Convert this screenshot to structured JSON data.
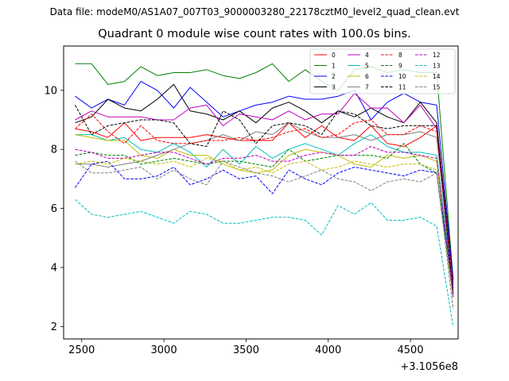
{
  "chart_data": {
    "type": "line",
    "suptitle": "Data file: modeM0/AS1A07_007T03_9000003280_22178cztM0_level2_quad_clean.evt",
    "title": "Quadrant 0 module wise count rates with 100.0s bins.",
    "xlabel": "",
    "ylabel": "",
    "x_offset_label": "+3.1056e8",
    "xlim": [
      2390,
      4790
    ],
    "ylim": [
      1.58,
      11.5
    ],
    "xticks": [
      2500,
      3000,
      3500,
      4000,
      4500
    ],
    "xtick_labels": [
      "2500",
      "3000",
      "3500",
      "4000",
      "4500"
    ],
    "yticks": [
      2,
      4,
      6,
      8,
      10
    ],
    "ytick_labels": [
      "2",
      "4",
      "6",
      "8",
      "10"
    ],
    "legend": {
      "placement": "top-right",
      "columns": 4
    },
    "x": [
      2460,
      2560,
      2660,
      2760,
      2860,
      2960,
      3060,
      3160,
      3260,
      3360,
      3460,
      3560,
      3660,
      3760,
      3860,
      3960,
      4060,
      4160,
      4260,
      4360,
      4460,
      4560,
      4660,
      4760
    ],
    "series": [
      {
        "name": "0",
        "color": "#ff0000",
        "dash": "solid",
        "values": [
          8.7,
          8.6,
          8.4,
          8.9,
          8.3,
          8.4,
          8.4,
          8.4,
          8.5,
          8.4,
          8.3,
          8.3,
          8.3,
          8.9,
          8.4,
          8.8,
          8.4,
          8.3,
          8.8,
          8.2,
          8.1,
          8.4,
          8.8,
          3.6
        ]
      },
      {
        "name": "1",
        "color": "#008000",
        "dash": "solid",
        "values": [
          10.9,
          10.9,
          10.2,
          10.3,
          10.8,
          10.5,
          10.6,
          10.6,
          10.7,
          10.5,
          10.4,
          10.6,
          10.9,
          10.3,
          10.7,
          10.3,
          10.0,
          10.7,
          10.8,
          10.6,
          10.7,
          10.6,
          10.6,
          3.6
        ]
      },
      {
        "name": "2",
        "color": "#0000ff",
        "dash": "solid",
        "values": [
          9.8,
          9.4,
          9.7,
          9.5,
          10.3,
          10.0,
          9.4,
          10.1,
          9.6,
          9.1,
          9.3,
          9.5,
          9.6,
          9.8,
          9.7,
          9.7,
          9.8,
          10.0,
          9.0,
          9.6,
          9.9,
          9.6,
          9.5,
          3.6
        ]
      },
      {
        "name": "3",
        "color": "#000000",
        "dash": "solid",
        "values": [
          8.9,
          9.1,
          9.7,
          9.4,
          9.3,
          9.7,
          10.2,
          9.3,
          9.2,
          9.0,
          9.3,
          8.9,
          9.4,
          9.6,
          9.3,
          8.9,
          9.3,
          9.1,
          9.4,
          9.1,
          8.9,
          9.6,
          8.9,
          3.5
        ]
      },
      {
        "name": "4",
        "color": "#bf00bf",
        "dash": "solid",
        "values": [
          9.0,
          9.3,
          9.1,
          9.1,
          9.1,
          9.0,
          9.0,
          9.4,
          9.5,
          8.8,
          9.2,
          9.1,
          9.0,
          9.3,
          9.0,
          9.2,
          9.2,
          9.9,
          9.4,
          9.4,
          8.9,
          9.5,
          8.7,
          3.4
        ]
      },
      {
        "name": "5",
        "color": "#00bfbf",
        "dash": "solid",
        "values": [
          8.5,
          8.5,
          8.3,
          8.4,
          8.0,
          7.9,
          8.2,
          7.9,
          7.4,
          8.0,
          7.5,
          8.1,
          7.7,
          8.0,
          8.2,
          8.0,
          7.8,
          8.2,
          8.5,
          8.1,
          7.9,
          7.9,
          7.8,
          3.2
        ]
      },
      {
        "name": "6",
        "color": "#bfbf00",
        "dash": "solid",
        "values": [
          8.5,
          8.4,
          8.3,
          8.3,
          7.8,
          7.7,
          8.0,
          7.8,
          7.8,
          7.5,
          7.3,
          7.2,
          7.3,
          7.8,
          8.0,
          7.9,
          7.8,
          7.5,
          7.4,
          7.8,
          7.7,
          7.8,
          7.6,
          3.0
        ]
      },
      {
        "name": "7",
        "color": "#808080",
        "dash": "solid",
        "values": [
          7.5,
          7.5,
          7.4,
          7.5,
          7.6,
          7.8,
          8.0,
          8.2,
          8.3,
          8.5,
          8.3,
          8.6,
          8.5,
          8.9,
          8.6,
          8.4,
          8.4,
          8.5,
          8.3,
          8.5,
          8.5,
          8.6,
          8.4,
          3.2
        ]
      },
      {
        "name": "8",
        "color": "#ff0000",
        "dash": "dashed",
        "values": [
          8.7,
          9.2,
          8.6,
          8.2,
          8.8,
          8.3,
          8.2,
          8.2,
          8.3,
          8.3,
          8.4,
          8.3,
          8.4,
          8.6,
          8.7,
          8.4,
          8.5,
          8.9,
          9.0,
          8.5,
          8.5,
          8.8,
          8.6,
          3.3
        ]
      },
      {
        "name": "9",
        "color": "#008000",
        "dash": "dashed",
        "values": [
          7.8,
          7.9,
          7.8,
          7.8,
          7.5,
          7.6,
          7.7,
          7.6,
          7.5,
          7.6,
          7.6,
          7.5,
          7.4,
          8.0,
          7.6,
          7.7,
          7.8,
          7.8,
          7.8,
          7.7,
          8.2,
          7.5,
          7.2,
          3.0
        ]
      },
      {
        "name": "10",
        "color": "#0000ff",
        "dash": "dashed",
        "values": [
          6.7,
          7.5,
          7.6,
          7.0,
          7.0,
          7.1,
          7.4,
          6.8,
          7.0,
          7.3,
          7.0,
          7.1,
          6.5,
          7.3,
          7.0,
          6.8,
          7.2,
          7.4,
          7.3,
          7.2,
          7.1,
          7.3,
          7.2,
          3.3
        ]
      },
      {
        "name": "11",
        "color": "#000000",
        "dash": "dashed",
        "values": [
          9.5,
          8.5,
          8.8,
          8.9,
          9.0,
          9.0,
          8.9,
          8.2,
          8.1,
          9.3,
          9.0,
          8.2,
          8.8,
          8.9,
          8.8,
          8.5,
          9.3,
          9.2,
          8.8,
          8.7,
          8.8,
          8.8,
          8.8,
          3.1
        ]
      },
      {
        "name": "12",
        "color": "#bf00bf",
        "dash": "dashed",
        "values": [
          8.0,
          7.9,
          7.7,
          7.7,
          7.8,
          7.9,
          7.9,
          7.7,
          7.5,
          7.7,
          7.7,
          7.8,
          7.6,
          7.6,
          7.8,
          7.9,
          7.8,
          7.8,
          8.1,
          7.9,
          7.9,
          7.8,
          7.7,
          3.0
        ]
      },
      {
        "name": "13",
        "color": "#00bfbf",
        "dash": "dashed",
        "values": [
          6.3,
          5.8,
          5.7,
          5.8,
          5.9,
          5.7,
          5.5,
          5.9,
          5.8,
          5.5,
          5.5,
          5.6,
          5.7,
          5.7,
          5.6,
          5.1,
          6.1,
          5.8,
          6.2,
          5.6,
          5.6,
          5.7,
          5.4,
          2.0
        ]
      },
      {
        "name": "14",
        "color": "#bfbf00",
        "dash": "dashed",
        "values": [
          7.5,
          7.6,
          7.5,
          7.7,
          7.6,
          7.5,
          7.6,
          7.4,
          7.7,
          7.6,
          7.3,
          7.4,
          7.2,
          7.5,
          7.6,
          7.3,
          7.4,
          7.6,
          7.5,
          7.4,
          7.5,
          7.5,
          7.3,
          2.6
        ]
      },
      {
        "name": "15",
        "color": "#808080",
        "dash": "dashed",
        "values": [
          7.6,
          7.2,
          7.2,
          7.3,
          7.4,
          7.0,
          7.3,
          7.0,
          6.8,
          7.6,
          7.4,
          7.2,
          7.1,
          6.9,
          7.1,
          7.3,
          7.0,
          6.9,
          6.6,
          6.9,
          7.0,
          6.9,
          7.2,
          2.6
        ]
      }
    ]
  }
}
